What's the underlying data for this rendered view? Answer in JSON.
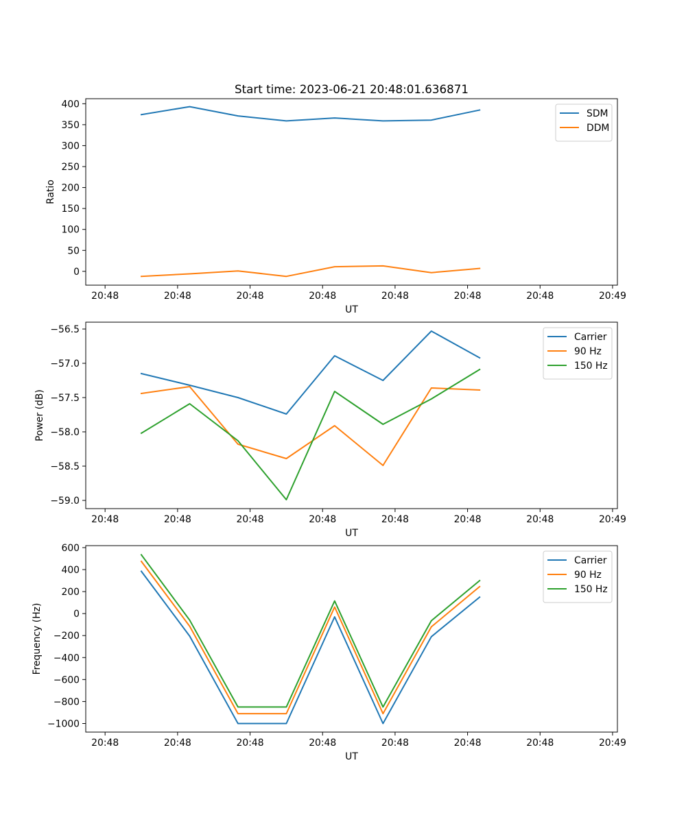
{
  "colors": {
    "blue": "#1f77b4",
    "orange": "#ff7f0e",
    "green": "#2ca02c"
  },
  "chart_data": [
    {
      "type": "line",
      "title": "Start time: 2023-06-21 20:48:01.636871",
      "xlabel": "UT",
      "ylabel": "Ratio",
      "x_tick_labels": [
        "20:48",
        "20:48",
        "20:48",
        "20:48",
        "20:48",
        "20:48",
        "20:48",
        "20:49"
      ],
      "x_tick_positions": [
        0,
        1.5,
        3,
        4.5,
        6,
        7.5,
        9,
        10.5
      ],
      "x": [
        0.75,
        1.75,
        2.75,
        3.75,
        4.75,
        5.75,
        6.75,
        7.75
      ],
      "xlim": [
        -0.4,
        10.6
      ],
      "ylim": [
        -33,
        412
      ],
      "y_ticks": [
        0,
        50,
        100,
        150,
        200,
        250,
        300,
        350,
        400
      ],
      "y_tick_labels": [
        "0",
        "50",
        "100",
        "150",
        "200",
        "250",
        "300",
        "350",
        "400"
      ],
      "legend_position": "upper right",
      "series": [
        {
          "name": "SDM",
          "color": "#1f77b4",
          "values": [
            374,
            393,
            371,
            359,
            366,
            359,
            361,
            385
          ]
        },
        {
          "name": "DDM",
          "color": "#ff7f0e",
          "values": [
            -12,
            -6,
            1,
            -12,
            11,
            13,
            -3,
            7
          ]
        }
      ]
    },
    {
      "type": "line",
      "title": "",
      "xlabel": "UT",
      "ylabel": "Power (dB)",
      "x_tick_labels": [
        "20:48",
        "20:48",
        "20:48",
        "20:48",
        "20:48",
        "20:48",
        "20:48",
        "20:49"
      ],
      "x_tick_positions": [
        0,
        1.5,
        3,
        4.5,
        6,
        7.5,
        9,
        10.5
      ],
      "x": [
        0.75,
        1.75,
        2.75,
        3.75,
        4.75,
        5.75,
        6.75,
        7.75
      ],
      "xlim": [
        -0.4,
        10.6
      ],
      "ylim": [
        -59.12,
        -56.4
      ],
      "y_ticks": [
        -59.0,
        -58.5,
        -58.0,
        -57.5,
        -57.0,
        -56.5
      ],
      "y_tick_labels": [
        "−59.0",
        "−58.5",
        "−58.0",
        "−57.5",
        "−57.0",
        "−56.5"
      ],
      "legend_position": "upper right",
      "series": [
        {
          "name": "Carrier",
          "color": "#1f77b4",
          "values": [
            -57.15,
            -57.32,
            -57.5,
            -57.74,
            -56.89,
            -57.25,
            -56.53,
            -56.92
          ]
        },
        {
          "name": "90 Hz",
          "color": "#ff7f0e",
          "values": [
            -57.44,
            -57.34,
            -58.18,
            -58.39,
            -57.91,
            -58.49,
            -57.36,
            -57.39
          ]
        },
        {
          "name": "150 Hz",
          "color": "#2ca02c",
          "values": [
            -58.02,
            -57.59,
            -58.13,
            -58.99,
            -57.41,
            -57.89,
            -57.52,
            -57.09
          ]
        }
      ]
    },
    {
      "type": "line",
      "title": "",
      "xlabel": "UT",
      "ylabel": "Frequency (Hz)",
      "x_tick_labels": [
        "20:48",
        "20:48",
        "20:48",
        "20:48",
        "20:48",
        "20:48",
        "20:48",
        "20:49"
      ],
      "x_tick_positions": [
        0,
        1.5,
        3,
        4.5,
        6,
        7.5,
        9,
        10.5
      ],
      "x": [
        0.75,
        1.75,
        2.75,
        3.75,
        4.75,
        5.75,
        6.75,
        7.75
      ],
      "xlim": [
        -0.4,
        10.6
      ],
      "ylim": [
        -1078,
        618
      ],
      "y_ticks": [
        -1000,
        -800,
        -600,
        -400,
        -200,
        0,
        200,
        400,
        600
      ],
      "y_tick_labels": [
        "−1000",
        "−800",
        "−600",
        "−400",
        "−200",
        "0",
        "200",
        "400",
        "600"
      ],
      "legend_position": "upper right",
      "series": [
        {
          "name": "Carrier",
          "color": "#1f77b4",
          "values": [
            385,
            -205,
            -1000,
            -1000,
            -30,
            -1000,
            -210,
            150
          ]
        },
        {
          "name": "90 Hz",
          "color": "#ff7f0e",
          "values": [
            475,
            -115,
            -910,
            -910,
            60,
            -910,
            -120,
            245
          ]
        },
        {
          "name": "150 Hz",
          "color": "#2ca02c",
          "values": [
            535,
            -60,
            -850,
            -850,
            115,
            -850,
            -65,
            300
          ]
        }
      ]
    }
  ]
}
